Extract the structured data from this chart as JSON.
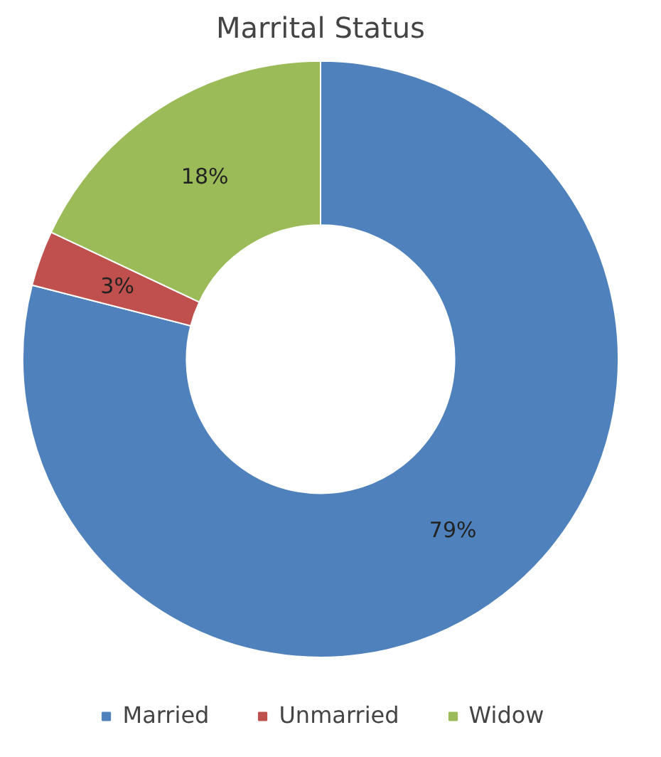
{
  "chart_data": {
    "type": "donut",
    "title": "Marrital Status",
    "categories": [
      "Married",
      "Unmarried",
      "Widow"
    ],
    "values": [
      79,
      3,
      18
    ],
    "value_labels": [
      "79%",
      "3%",
      "18%"
    ],
    "colors": [
      "#4f81bd",
      "#c0504d",
      "#9bbb59"
    ],
    "legend": "bottom"
  }
}
